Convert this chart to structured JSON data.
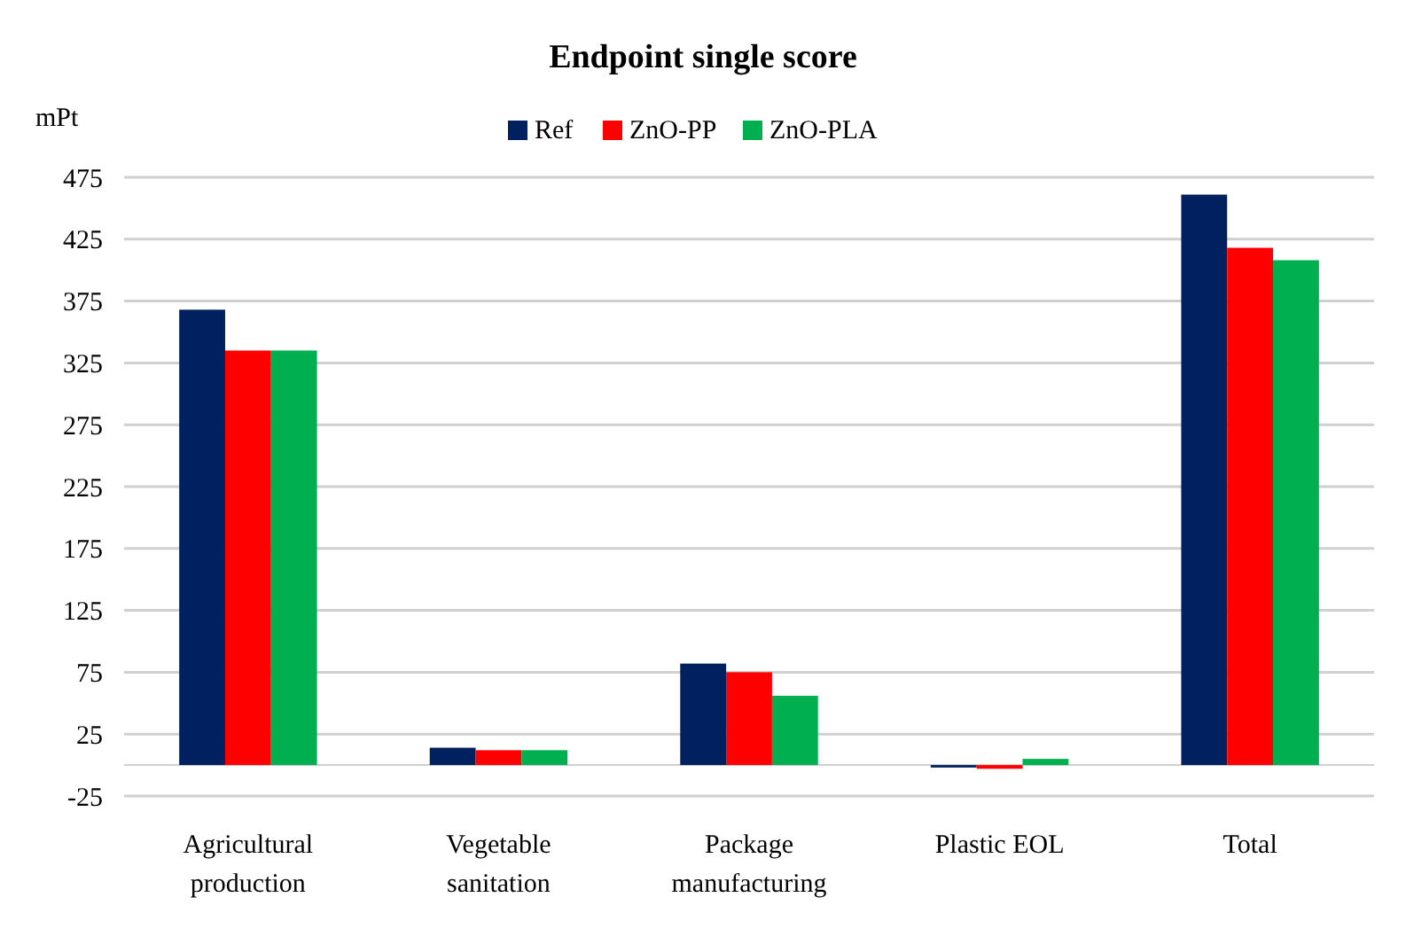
{
  "chart_data": {
    "type": "bar",
    "title": "Endpoint single score",
    "ylabel": "mPt",
    "categories": [
      "Agricultural production",
      "Vegetable sanitation",
      "Package manufacturing",
      "Plastic EOL",
      "Total"
    ],
    "series": [
      {
        "name": "Ref",
        "color": "#002060",
        "values": [
          368,
          14,
          82,
          -2,
          461
        ]
      },
      {
        "name": "ZnO-PP",
        "color": "#ff0000",
        "values": [
          335,
          12,
          75,
          -3,
          418
        ]
      },
      {
        "name": "ZnO-PLA",
        "color": "#00b050",
        "values": [
          335,
          12,
          56,
          5,
          408
        ]
      }
    ],
    "ylim": [
      -25,
      475
    ],
    "yticks": [
      -25,
      25,
      75,
      125,
      175,
      225,
      275,
      325,
      375,
      425,
      475
    ],
    "grid": true,
    "legend": "top"
  }
}
